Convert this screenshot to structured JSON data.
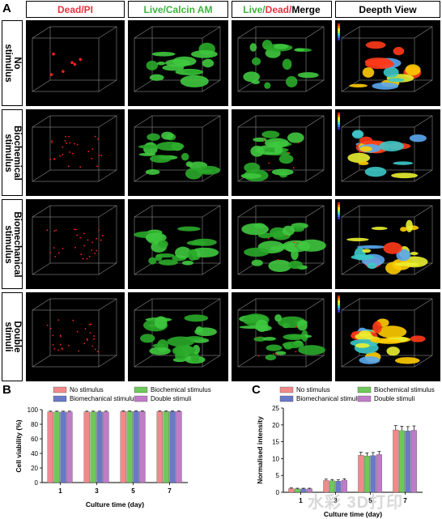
{
  "panel_a": {
    "letter": "A",
    "columns": [
      {
        "parts": [
          {
            "text": "Dead/PI",
            "color": "#e8323c"
          }
        ]
      },
      {
        "parts": [
          {
            "text": "Live",
            "color": "#3cb43c"
          },
          {
            "text": "/",
            "color": "#3cb43c"
          },
          {
            "text": "Calcin AM",
            "color": "#3cb43c"
          }
        ]
      },
      {
        "parts": [
          {
            "text": "Live/",
            "color": "#3cb43c"
          },
          {
            "text": "Dead/",
            "color": "#e8323c"
          },
          {
            "text": "Merge",
            "color": "#000000"
          }
        ]
      },
      {
        "parts": [
          {
            "text": "Deepth View",
            "color": "#000000"
          }
        ]
      }
    ],
    "rows": [
      {
        "label": "No\nstimulus"
      },
      {
        "label": "Biochemical\nstimulus"
      },
      {
        "label": "Biomechanical\nstimulus"
      },
      {
        "label": "Double\nstimuli"
      }
    ]
  },
  "panel_b": {
    "letter": "B",
    "chart_data": {
      "type": "bar",
      "categories": [
        "1",
        "3",
        "5",
        "7"
      ],
      "series": [
        {
          "name": "No stimulus",
          "values": [
            97,
            97,
            97.5,
            97.5
          ],
          "color": "#f08a8a"
        },
        {
          "name": "Biochemical stimulus",
          "values": [
            97,
            97,
            97.5,
            97.5
          ],
          "color": "#6fc85a"
        },
        {
          "name": "Biomechanical stimulus",
          "values": [
            97,
            97,
            97.5,
            97.5
          ],
          "color": "#6a78c8"
        },
        {
          "name": "Double stimuli",
          "values": [
            97,
            97,
            97.5,
            97.5
          ],
          "color": "#c07cc8"
        }
      ],
      "errors": [
        1,
        1,
        1,
        1
      ],
      "xlabel": "Culture time (day)",
      "ylabel": "Cell viability (%)",
      "ylim": [
        0,
        100
      ],
      "yticks": [
        "0",
        "20",
        "40",
        "60",
        "80",
        "100"
      ]
    }
  },
  "panel_c": {
    "letter": "C",
    "chart_data": {
      "type": "bar",
      "categories": [
        "1",
        "3",
        "5",
        "7"
      ],
      "series": [
        {
          "name": "No stimulus",
          "values": [
            1.1,
            3.5,
            11,
            18.5
          ],
          "color": "#f08a8a"
        },
        {
          "name": "Biochemical stimulus",
          "values": [
            1.0,
            3.4,
            10.8,
            18.3
          ],
          "color": "#6fc85a"
        },
        {
          "name": "Biomechanical stimulus",
          "values": [
            1.0,
            3.3,
            10.9,
            18.2
          ],
          "color": "#6a78c8"
        },
        {
          "name": "Double stimuli",
          "values": [
            1.0,
            3.6,
            11.2,
            18.4
          ],
          "color": "#c07cc8"
        }
      ],
      "errors": [
        0.2,
        0.4,
        0.9,
        1.3
      ],
      "xlabel": "Culture time (day)",
      "ylabel": "Normalised intensity",
      "ylim": [
        0,
        25
      ],
      "yticks": [
        "0",
        "5",
        "10",
        "15",
        "20",
        "25"
      ]
    }
  },
  "watermark": "水彩 3D打印"
}
